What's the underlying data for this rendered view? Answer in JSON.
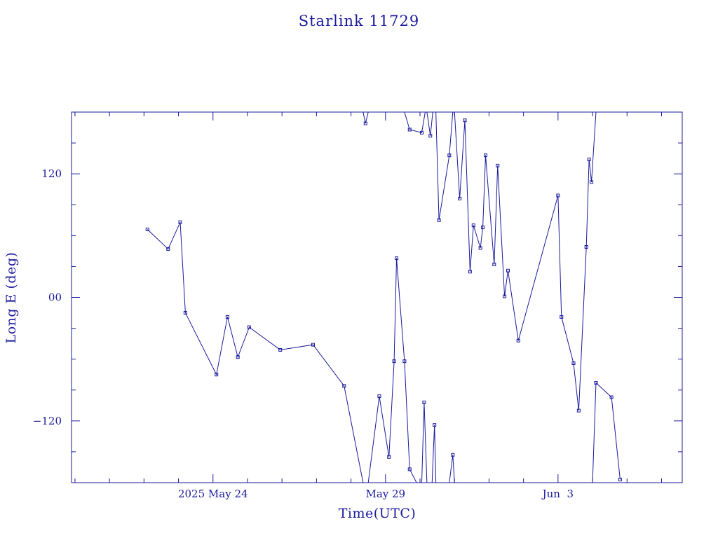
{
  "chart_data": {
    "type": "line",
    "title": "Starlink 11729",
    "xlabel": "Time(UTC)",
    "ylabel": "Long E (deg)",
    "xlim": [
      -4.1,
      13.6
    ],
    "ylim": [
      -180,
      180
    ],
    "grid": false,
    "x_ticks": [
      {
        "x": 0,
        "label": "2025 May 24"
      },
      {
        "x": 5,
        "label": "May 29"
      },
      {
        "x": 10,
        "label": "Jun  3"
      }
    ],
    "y_ticks": [
      {
        "y": 120,
        "label": "120"
      },
      {
        "y": 0,
        "label": "00"
      },
      {
        "y": -120,
        "label": "−120"
      }
    ],
    "x_note": "x = days after 2025 May 24 00:00 UTC",
    "series": [
      {
        "name": "Long E",
        "points": [
          [
            -1.9,
            66
          ],
          [
            -1.3,
            47
          ],
          [
            -0.95,
            73
          ],
          [
            -0.8,
            -15
          ],
          [
            0.1,
            -75
          ],
          [
            0.42,
            -19
          ],
          [
            0.72,
            -58
          ],
          [
            1.05,
            -29
          ],
          [
            1.95,
            -51
          ],
          [
            2.9,
            -46
          ],
          [
            3.8,
            -86
          ],
          [
            4.35,
            -180
          ],
          null,
          [
            4.35,
            180
          ],
          [
            4.42,
            169
          ],
          [
            4.5,
            180
          ],
          null,
          [
            4.5,
            -180
          ],
          [
            4.82,
            -96
          ],
          [
            5.1,
            -155
          ],
          [
            5.25,
            -62
          ],
          [
            5.32,
            38
          ],
          [
            5.55,
            -62
          ],
          [
            5.7,
            -167
          ],
          [
            5.9,
            -180
          ],
          null,
          [
            5.55,
            180
          ],
          [
            5.7,
            163
          ],
          [
            6.05,
            160
          ],
          [
            6.15,
            180
          ],
          null,
          [
            6.05,
            -180
          ],
          [
            6.12,
            -102
          ],
          [
            6.2,
            -180
          ],
          null,
          [
            6.2,
            180
          ],
          [
            6.3,
            157
          ],
          [
            6.37,
            180
          ],
          null,
          [
            6.35,
            -180
          ],
          [
            6.42,
            -124
          ],
          [
            6.46,
            -180
          ],
          null,
          [
            6.46,
            180
          ],
          [
            6.55,
            75
          ],
          [
            6.85,
            138
          ],
          [
            6.95,
            180
          ],
          null,
          [
            6.85,
            -180
          ],
          [
            6.95,
            -153
          ],
          [
            7.0,
            -180
          ],
          null,
          [
            7.0,
            180
          ],
          [
            7.15,
            96
          ],
          [
            7.3,
            172
          ],
          [
            7.45,
            25
          ],
          [
            7.55,
            70
          ],
          [
            7.75,
            48
          ],
          [
            7.82,
            68
          ],
          [
            7.9,
            138
          ],
          [
            8.15,
            32
          ],
          [
            8.25,
            128
          ],
          [
            8.45,
            1
          ],
          [
            8.55,
            26
          ],
          [
            8.85,
            -42
          ],
          [
            10.0,
            99
          ],
          [
            10.1,
            -19
          ],
          [
            10.45,
            -64
          ],
          [
            10.6,
            -110
          ],
          [
            10.82,
            49
          ],
          [
            10.9,
            134
          ],
          [
            10.97,
            112
          ],
          [
            11.1,
            180
          ],
          null,
          [
            11.0,
            -180
          ],
          [
            11.1,
            -83
          ],
          [
            11.55,
            -97
          ],
          [
            11.8,
            -177
          ]
        ]
      }
    ]
  }
}
